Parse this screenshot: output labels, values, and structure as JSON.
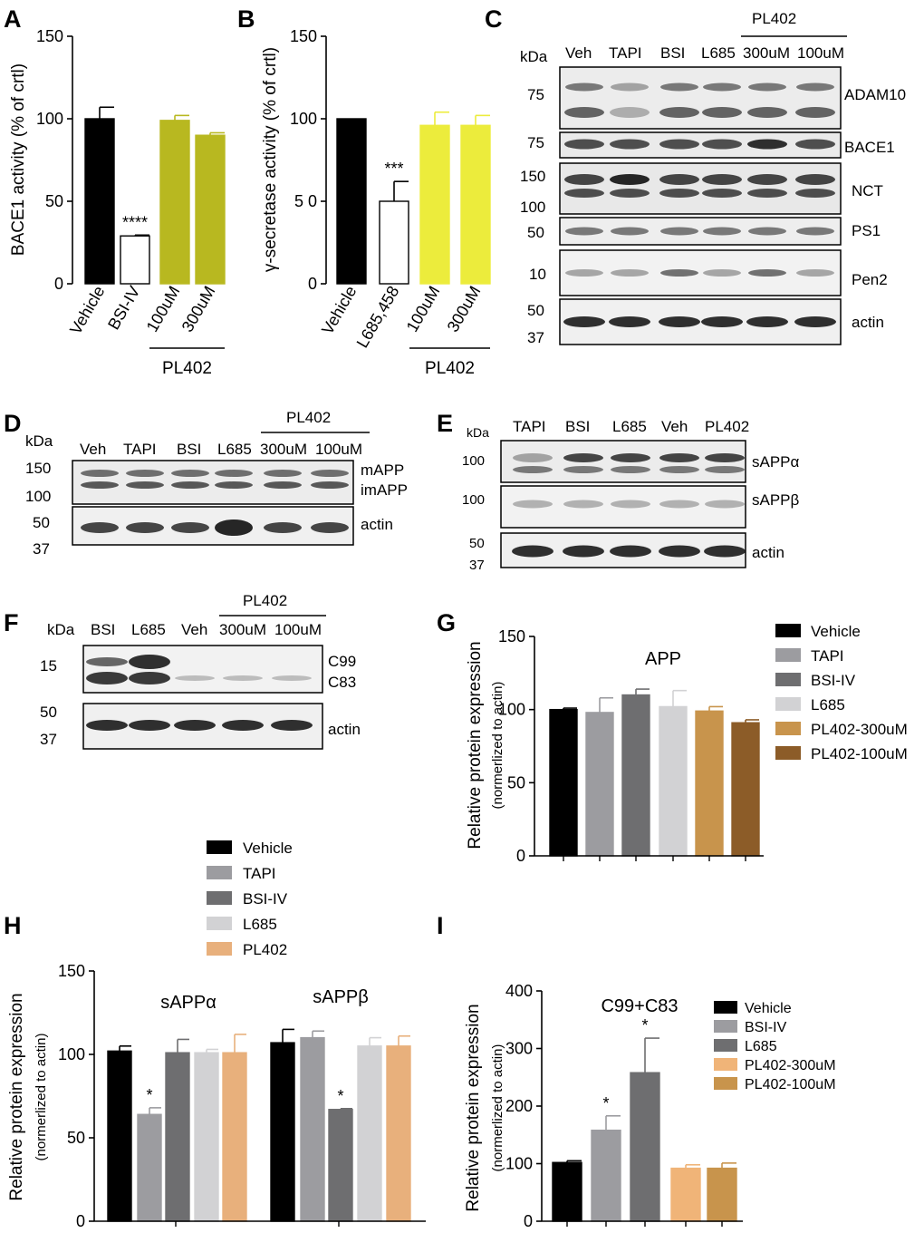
{
  "panels": {
    "A": {
      "letter": "A"
    },
    "B": {
      "letter": "B"
    },
    "C": {
      "letter": "C",
      "kda": "kDa",
      "lanes": [
        "Veh",
        "TAPI",
        "BSI",
        "L685",
        "300uM",
        "100uM"
      ],
      "group_label": "PL402",
      "proteins": [
        "ADAM10",
        "BACE1",
        "NCT",
        "PS1",
        "Pen2",
        "actin"
      ],
      "markers": [
        "75",
        "75",
        "150",
        "100",
        "50",
        "10",
        "50",
        "37"
      ]
    },
    "D": {
      "letter": "D",
      "kda": "kDa",
      "lanes": [
        "Veh",
        "TAPI",
        "BSI",
        "L685",
        "300uM",
        "100uM"
      ],
      "group_label": "PL402",
      "proteins": [
        "mAPP",
        "imAPP",
        "actin"
      ],
      "markers": [
        "150",
        "100",
        "50",
        "37"
      ]
    },
    "E": {
      "letter": "E",
      "kda": "kDa",
      "lanes": [
        "TAPI",
        "BSI",
        "L685",
        "Veh",
        "PL402"
      ],
      "proteins": [
        "sAPPα",
        "sAPPβ",
        "actin"
      ],
      "markers": [
        "100",
        "100",
        "50",
        "37"
      ]
    },
    "F": {
      "letter": "F",
      "kda": "kDa",
      "lanes": [
        "BSI",
        "L685",
        "Veh",
        "300uM",
        "100uM"
      ],
      "group_label": "PL402",
      "proteins": [
        "C99",
        "C83",
        "actin"
      ],
      "markers": [
        "15",
        "50",
        "37"
      ]
    },
    "G": {
      "letter": "G"
    },
    "H": {
      "letter": "H"
    },
    "I": {
      "letter": "I"
    }
  },
  "chart_data": [
    {
      "id": "A",
      "type": "bar",
      "ylabel": "BACE1 activity (% of crtl)",
      "ylim": [
        0,
        150
      ],
      "yticks": [
        0,
        50,
        100,
        150
      ],
      "categories": [
        "Vehicle",
        "BSI-IV",
        "100uM",
        "300uM"
      ],
      "values": [
        100,
        29,
        99,
        90
      ],
      "errors": [
        7,
        0.5,
        3,
        1.5
      ],
      "colors": [
        "#000000",
        "#ffffff",
        "#b8b820",
        "#b8b820"
      ],
      "annotations": [
        {
          "index": 1,
          "text": "****"
        }
      ],
      "group": {
        "label": "PL402",
        "from": 2,
        "to": 3
      }
    },
    {
      "id": "B",
      "type": "bar",
      "ylabel": "γ-secretase activity (% of crtl)",
      "ylim": [
        0,
        150
      ],
      "yticks": [
        0,
        50,
        100,
        150
      ],
      "ytick_labels": [
        "0",
        "5 0",
        "100",
        "150"
      ],
      "categories": [
        "Vehicle",
        "L685,458",
        "100uM",
        "300uM"
      ],
      "values": [
        100,
        50,
        96,
        96
      ],
      "errors": [
        0,
        12,
        8,
        6
      ],
      "colors": [
        "#000000",
        "#ffffff",
        "#ecec3c",
        "#ecec3c"
      ],
      "annotations": [
        {
          "index": 1,
          "text": "***"
        }
      ],
      "group": {
        "label": "PL402",
        "from": 2,
        "to": 3
      }
    },
    {
      "id": "G",
      "type": "bar",
      "title": "APP",
      "ylabel": "Relative protein expression",
      "ylabel2": "(normerlized to actin)",
      "ylim": [
        0,
        150
      ],
      "yticks": [
        0,
        50,
        100,
        150
      ],
      "categories": [
        "Vehicle",
        "TAPI",
        "BSI-IV",
        "L685",
        "PL402-300uM",
        "PL402-100uM"
      ],
      "values": [
        100,
        98,
        110,
        102,
        99,
        91
      ],
      "errors": [
        1,
        10,
        4,
        11,
        3,
        2
      ],
      "colors": [
        "#000000",
        "#9c9ca0",
        "#6e6e70",
        "#d2d2d4",
        "#c8944c",
        "#8c5c28"
      ],
      "legend": [
        "Vehicle",
        "TAPI",
        "BSI-IV",
        "L685",
        "PL402-300uM",
        "PL402-100uM"
      ]
    },
    {
      "id": "H",
      "type": "bar",
      "ylabel": "Relative protein expression",
      "ylabel2": "(normerlized to actin)",
      "ylim": [
        0,
        150
      ],
      "yticks": [
        0,
        50,
        100,
        150
      ],
      "groups": [
        "sAPPα",
        "sAPPβ"
      ],
      "series": [
        {
          "name": "Vehicle",
          "values": [
            102,
            107
          ],
          "errors": [
            3,
            8
          ]
        },
        {
          "name": "TAPI",
          "values": [
            64,
            110
          ],
          "errors": [
            4,
            4
          ]
        },
        {
          "name": "BSI-IV",
          "values": [
            101,
            67
          ],
          "errors": [
            8,
            0.5
          ]
        },
        {
          "name": "L685",
          "values": [
            101,
            105
          ],
          "errors": [
            2,
            5
          ]
        },
        {
          "name": "PL402",
          "values": [
            101,
            105
          ],
          "errors": [
            11,
            6
          ]
        }
      ],
      "colors": [
        "#000000",
        "#9c9ca0",
        "#6e6e70",
        "#d2d2d4",
        "#e8b07c"
      ],
      "annotations": [
        {
          "group": 0,
          "series": 1,
          "text": "*"
        },
        {
          "group": 1,
          "series": 2,
          "text": "*"
        }
      ]
    },
    {
      "id": "I",
      "type": "bar",
      "title": "C99+C83",
      "ylabel": "Relative protein expression",
      "ylabel2": "(normerlized to actin)",
      "ylim": [
        0,
        400
      ],
      "yticks": [
        0,
        100,
        200,
        300,
        400
      ],
      "categories": [
        "Vehicle",
        "BSI-IV",
        "L685",
        "PL402-300uM",
        "PL402-100uM"
      ],
      "values": [
        102,
        158,
        258,
        92,
        92
      ],
      "errors": [
        3,
        25,
        60,
        6,
        9
      ],
      "colors": [
        "#000000",
        "#9c9ca0",
        "#6e6e70",
        "#f0b478",
        "#c8944c"
      ],
      "legend": [
        "Vehicle",
        "BSI-IV",
        "L685",
        "PL402-300uM",
        "PL402-100uM"
      ],
      "annotations": [
        {
          "index": 1,
          "text": "*"
        },
        {
          "index": 2,
          "text": "*"
        }
      ]
    }
  ]
}
